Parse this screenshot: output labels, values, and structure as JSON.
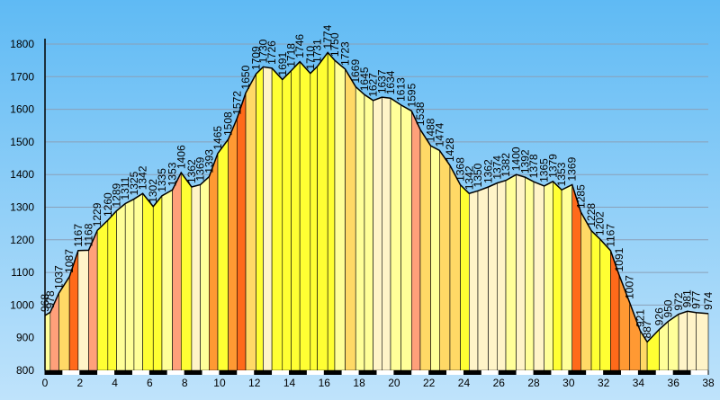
{
  "chart_data": {
    "type": "area",
    "x": [
      0,
      0.3,
      0.8,
      1.4,
      1.9,
      2.5,
      3.0,
      3.6,
      4.1,
      4.6,
      5.1,
      5.6,
      6.2,
      6.7,
      7.3,
      7.8,
      8.4,
      8.9,
      9.4,
      9.9,
      10.5,
      11.0,
      11.5,
      12.1,
      12.5,
      13.0,
      13.6,
      14.1,
      14.6,
      15.2,
      15.6,
      16.2,
      16.6,
      17.2,
      17.8,
      18.3,
      18.8,
      19.3,
      19.8,
      20.4,
      21.0,
      21.5,
      22.1,
      22.6,
      23.2,
      23.8,
      24.3,
      24.8,
      25.4,
      25.9,
      26.4,
      27.0,
      27.5,
      28.0,
      28.6,
      29.1,
      29.6,
      30.2,
      30.7,
      31.3,
      31.8,
      32.4,
      32.9,
      33.5,
      34.1,
      34.5,
      35.2,
      35.7,
      36.3,
      36.8,
      37.3,
      38.0
    ],
    "values": [
      968,
      978,
      1037,
      1087,
      1167,
      1168,
      1229,
      1260,
      1289,
      1311,
      1325,
      1342,
      1302,
      1335,
      1353,
      1406,
      1362,
      1369,
      1393,
      1465,
      1508,
      1572,
      1650,
      1709,
      1730,
      1726,
      1691,
      1718,
      1746,
      1710,
      1731,
      1774,
      1750,
      1723,
      1669,
      1645,
      1627,
      1637,
      1634,
      1613,
      1595,
      1538,
      1488,
      1474,
      1428,
      1368,
      1342,
      1350,
      1362,
      1374,
      1382,
      1400,
      1392,
      1378,
      1365,
      1379,
      1353,
      1369,
      1285,
      1228,
      1202,
      1167,
      1091,
      1007,
      921,
      887,
      926,
      950,
      972,
      981,
      977,
      974
    ],
    "xlim": [
      0,
      38
    ],
    "ylim": [
      800,
      1800
    ],
    "xticks": [
      0,
      2,
      4,
      6,
      8,
      10,
      12,
      14,
      16,
      18,
      20,
      22,
      24,
      26,
      28,
      30,
      32,
      34,
      36,
      38
    ],
    "yticks": [
      800,
      900,
      1000,
      1100,
      1200,
      1300,
      1400,
      1500,
      1600,
      1700,
      1800
    ],
    "grid": true,
    "line_color": "#000000",
    "colors": [
      "#fff4c8",
      "#ffff99",
      "#ffff33",
      "#ffd966",
      "#ffa07a",
      "#ff9933",
      "#ff6a1a",
      "#ff3300"
    ]
  }
}
